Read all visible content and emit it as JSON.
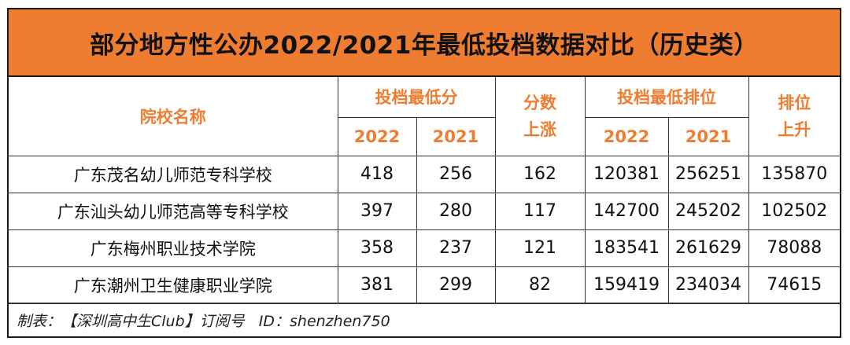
{
  "title": "部分地方性公办2022/2021年最低投档数据对比（历史类）",
  "headers": {
    "school_name": "院校名称",
    "min_score_group": "投档最低分",
    "score_rise_line1": "分数",
    "score_rise_line2": "上涨",
    "min_rank_group": "投档最低排位",
    "rank_rise_line1": "排位",
    "rank_rise_line2": "上升",
    "year_2022": "2022",
    "year_2021": "2021"
  },
  "rows": [
    {
      "name": "广东茂名幼儿师范专科学校",
      "score_2022": "418",
      "score_2021": "256",
      "score_rise": "162",
      "rank_2022": "120381",
      "rank_2021": "256251",
      "rank_rise": "135870"
    },
    {
      "name": "广东汕头幼儿师范高等专科学校",
      "score_2022": "397",
      "score_2021": "280",
      "score_rise": "117",
      "rank_2022": "142700",
      "rank_2021": "245202",
      "rank_rise": "102502"
    },
    {
      "name": "广东梅州职业技术学院",
      "score_2022": "358",
      "score_2021": "237",
      "score_rise": "121",
      "rank_2022": "183541",
      "rank_2021": "261629",
      "rank_rise": "78088"
    },
    {
      "name": "广东潮州卫生健康职业学院",
      "score_2022": "381",
      "score_2021": "299",
      "score_rise": "82",
      "rank_2022": "159419",
      "rank_2021": "234034",
      "rank_rise": "74615"
    }
  ],
  "footer": "制表：【深圳高中生Club】订阅号   ID：shenzhen750",
  "colors": {
    "title_background": "#ee7d31",
    "header_text": "#ee7d31",
    "body_text": "#111111",
    "border": "#1a1a1a"
  }
}
